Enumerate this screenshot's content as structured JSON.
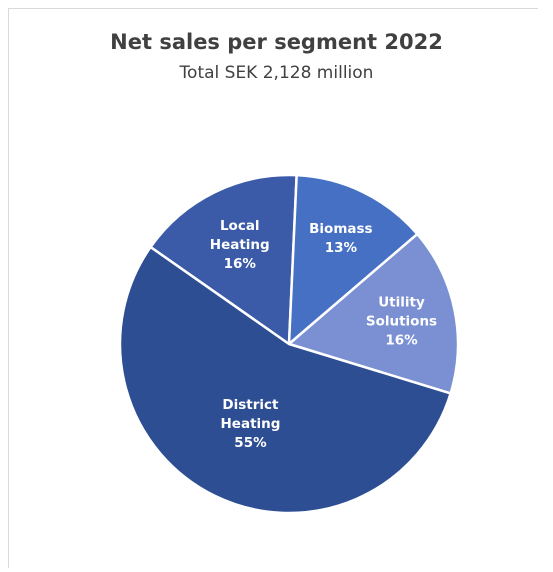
{
  "chart_data": {
    "type": "pie",
    "title": "Net sales per segment 2022",
    "subtitle": "Total SEK 2,128 million",
    "slices": [
      {
        "label": [
          "Local",
          "Heating"
        ],
        "percent_label": "16%",
        "value": 16,
        "color": "#3b5ba8"
      },
      {
        "label": [
          "Biomass"
        ],
        "percent_label": "13%",
        "value": 13,
        "color": "#4670c4"
      },
      {
        "label": [
          "Utility",
          "Solutions"
        ],
        "percent_label": "16%",
        "value": 16,
        "color": "#7b90d2"
      },
      {
        "label": [
          "District",
          "Heating"
        ],
        "percent_label": "55%",
        "value": 55,
        "color": "#2e4e94"
      }
    ],
    "legend": "none",
    "grid": false
  }
}
